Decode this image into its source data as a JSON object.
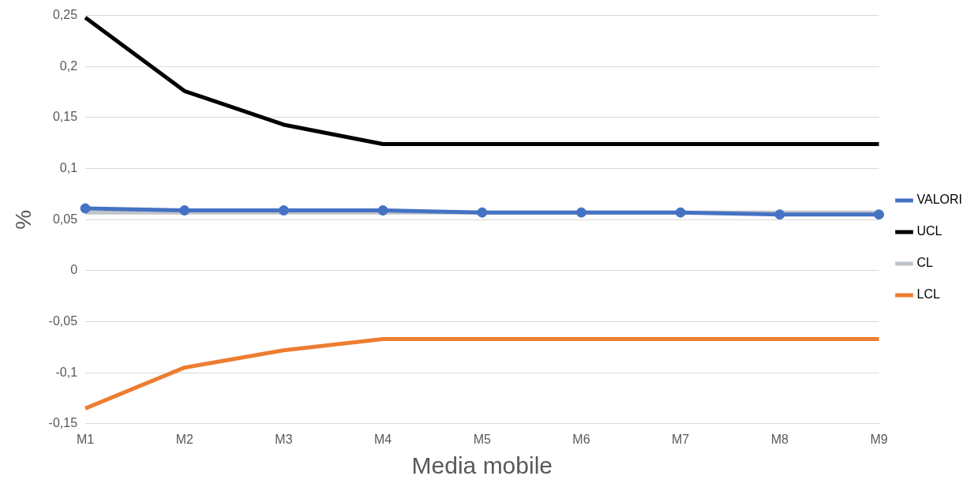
{
  "chart_data": {
    "type": "line",
    "xlabel": "Media mobile",
    "ylabel": "%",
    "categories": [
      "M1",
      "M2",
      "M3",
      "M4",
      "M5",
      "M6",
      "M7",
      "M8",
      "M9"
    ],
    "series": [
      {
        "name": "VALORI",
        "color": "#4472c4",
        "marker": "circle",
        "values": [
          0.061,
          0.059,
          0.059,
          0.059,
          0.057,
          0.057,
          0.057,
          0.055,
          0.055
        ]
      },
      {
        "name": "UCL",
        "color": "#000000",
        "marker": "none",
        "values": [
          0.248,
          0.176,
          0.143,
          0.124,
          0.124,
          0.124,
          0.124,
          0.124,
          0.124
        ]
      },
      {
        "name": "CL",
        "color": "#bfc3ca",
        "marker": "none",
        "values": [
          0.057,
          0.057,
          0.057,
          0.057,
          0.057,
          0.057,
          0.057,
          0.057,
          0.057
        ]
      },
      {
        "name": "LCL",
        "color": "#ed7d31",
        "marker": "none",
        "values": [
          -0.135,
          -0.095,
          -0.078,
          -0.067,
          -0.067,
          -0.067,
          -0.067,
          -0.067,
          -0.067
        ]
      }
    ],
    "ylim": [
      -0.15,
      0.25
    ],
    "yticks": [
      {
        "value": -0.15,
        "label": "-0,15"
      },
      {
        "value": -0.1,
        "label": "-0,1"
      },
      {
        "value": -0.05,
        "label": "-0,05"
      },
      0,
      {
        "value": 0.05,
        "label": "0,05"
      },
      {
        "value": 0.1,
        "label": "0,1"
      },
      {
        "value": 0.15,
        "label": "0,15"
      },
      {
        "value": 0.2,
        "label": "0,2"
      },
      {
        "value": 0.25,
        "label": "0,25"
      }
    ],
    "grid": "y",
    "legend": "right",
    "line_style": "solid"
  }
}
